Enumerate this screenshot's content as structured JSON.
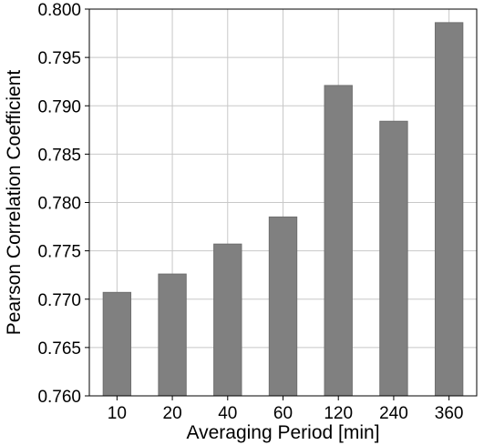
{
  "chart_data": {
    "type": "bar",
    "title": "",
    "xlabel": "Averaging Period [min]",
    "ylabel": "Pearson Correlation Coefficient",
    "categories": [
      "10",
      "20",
      "40",
      "60",
      "120",
      "240",
      "360"
    ],
    "values": [
      0.7707,
      0.7726,
      0.7757,
      0.7785,
      0.7921,
      0.7884,
      0.7986
    ],
    "ylim": [
      0.76,
      0.8
    ],
    "yticks": [
      "0.760",
      "0.765",
      "0.770",
      "0.775",
      "0.780",
      "0.785",
      "0.790",
      "0.795",
      "0.800"
    ],
    "grid": true,
    "legend": "none",
    "bar_color": "#808080",
    "bar_edge_color": "#6f6f6f",
    "grid_color": "#c8c8c8"
  }
}
